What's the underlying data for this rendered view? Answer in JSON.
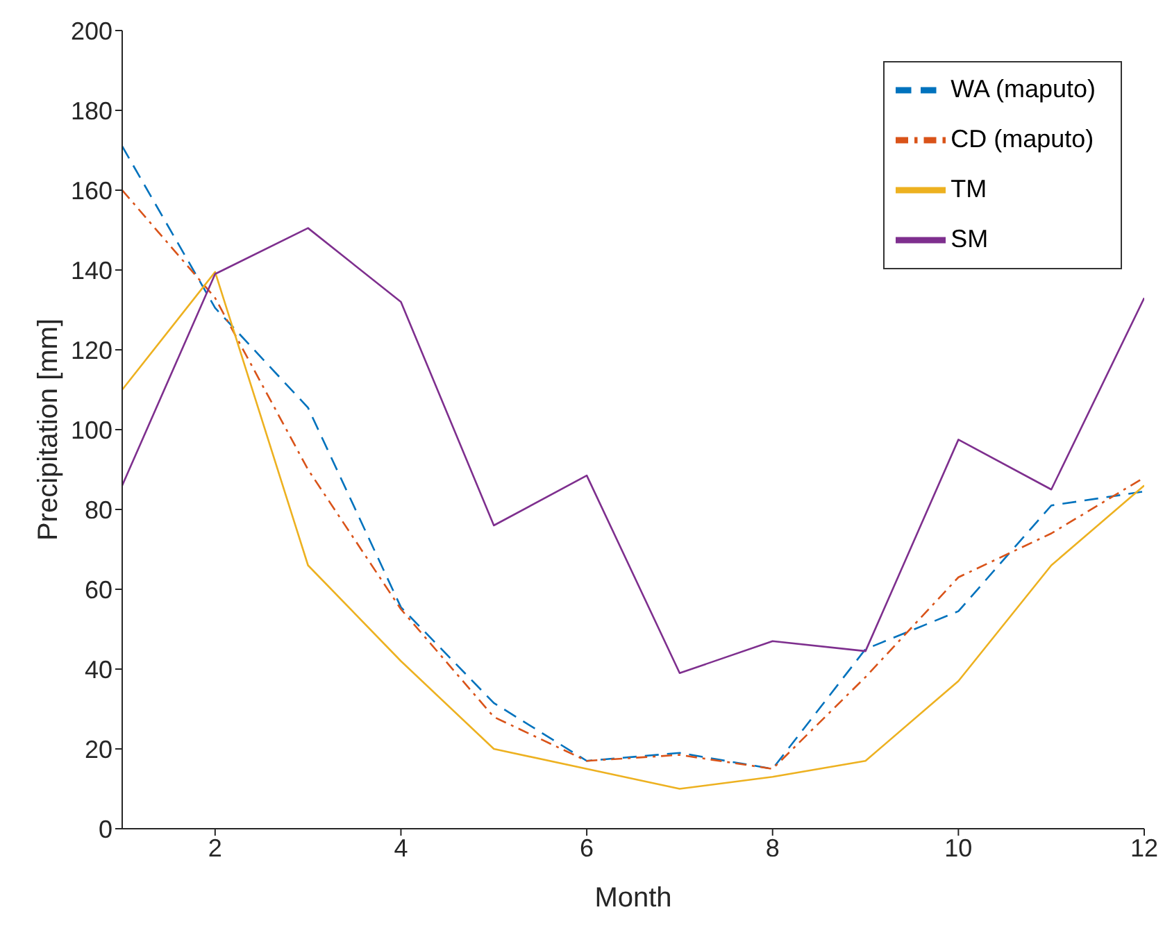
{
  "chart_data": {
    "type": "line",
    "xlabel": "Month",
    "ylabel": "Precipitation [mm]",
    "x": [
      1,
      2,
      3,
      4,
      5,
      6,
      7,
      8,
      9,
      10,
      11,
      12
    ],
    "xlim": [
      1,
      12
    ],
    "xticks": [
      2,
      4,
      6,
      8,
      10,
      12
    ],
    "ylim": [
      0,
      200
    ],
    "yticks": [
      0,
      20,
      40,
      60,
      80,
      100,
      120,
      140,
      160,
      180,
      200
    ],
    "grid": false,
    "legend": "top right",
    "marker": "none",
    "series": [
      {
        "name": "WA (maputo)",
        "color": "#0072bd",
        "line_style": "dashed",
        "values": [
          171,
          130.5,
          105.5,
          55.5,
          31.5,
          17,
          19,
          15,
          45,
          54.5,
          81,
          84.5
        ]
      },
      {
        "name": "CD (maputo)",
        "color": "#d95319",
        "line_style": "dashdot",
        "values": [
          160,
          133,
          90,
          55,
          28,
          17,
          18.5,
          15,
          38,
          63,
          74,
          88
        ]
      },
      {
        "name": "TM",
        "color": "#edb120",
        "line_style": "solid",
        "values": [
          110,
          139.5,
          66,
          42,
          20,
          15,
          10,
          13,
          17,
          37,
          66,
          86
        ]
      },
      {
        "name": "SM",
        "color": "#7e2f8e",
        "line_style": "solid",
        "values": [
          86,
          139,
          150.5,
          132,
          76,
          88.5,
          39,
          47,
          44.5,
          97.5,
          85,
          133
        ]
      }
    ]
  }
}
